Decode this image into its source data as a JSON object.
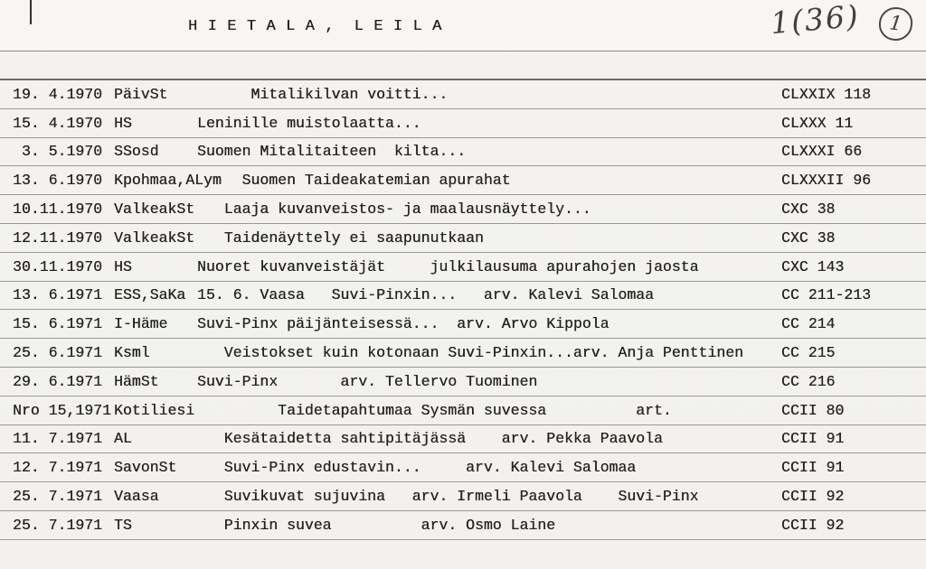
{
  "header": {
    "title": "H I E T A L A ,  L E I L A",
    "handwritten_numbering": "1(36)",
    "circled_number": "1"
  },
  "colors": {
    "paper": "#f3f2ee",
    "ink": "#26241f",
    "rule_line": "#9b9893",
    "rule_line_dark": "#6d6b66",
    "handwriting": "#41403c"
  },
  "entries": [
    {
      "date": "19. 4.1970",
      "source": "PäivSt",
      "title": "      Mitalikilvan voitti...",
      "ref": "CLXXIX 118"
    },
    {
      "date": "15. 4.1970",
      "source": "HS",
      "title": "Leninille muistolaatta...",
      "ref": "CLXXX 11"
    },
    {
      "date": " 3. 5.1970",
      "source": "SSosd",
      "title": "Suomen Mitalitaiteen  kilta...",
      "ref": "CLXXXI 66"
    },
    {
      "date": "13. 6.1970",
      "source": "Kpohmaa,ALym",
      "title": "     Suomen Taideakatemian apurahat",
      "ref": "CLXXXII 96"
    },
    {
      "date": "10.11.1970",
      "source": "ValkeakSt",
      "title": "   Laaja kuvanveistos- ja maalausnäyttely...",
      "ref": "CXC 38"
    },
    {
      "date": "12.11.1970",
      "source": "ValkeakSt",
      "title": "   Taidenäyttely ei saapunutkaan",
      "ref": "CXC 38"
    },
    {
      "date": "30.11.1970",
      "source": "HS",
      "title": "Nuoret kuvanveistäjät     julkilausuma apurahojen jaosta",
      "ref": "CXC 143"
    },
    {
      "date": "13. 6.1971",
      "source": "ESS,SaKa",
      "title": "15. 6. Vaasa   Suvi-Pinxin...   arv. Kalevi Salomaa",
      "ref": "CC 211-213"
    },
    {
      "date": "15. 6.1971",
      "source": "I-Häme",
      "title": "Suvi-Pinx päijänteisessä...  arv. Arvo Kippola",
      "ref": "CC 214"
    },
    {
      "date": "25. 6.1971",
      "source": "Ksml",
      "title": "   Veistokset kuin kotonaan Suvi-Pinxin...arv. Anja Penttinen",
      "ref": "CC 215"
    },
    {
      "date": "29. 6.1971",
      "source": "HämSt",
      "title": "Suvi-Pinx       arv. Tellervo Tuominen",
      "ref": "CC 216"
    },
    {
      "date": "Nro 15,1971",
      "source": "Kotiliesi",
      "title": "         Taidetapahtumaa Sysmän suvessa          art.",
      "ref": "CCII 80"
    },
    {
      "date": "11. 7.1971",
      "source": "AL",
      "title": "   Kesätaidetta sahtipitäjässä    arv. Pekka Paavola",
      "ref": "CCII 91"
    },
    {
      "date": "12. 7.1971",
      "source": "SavonSt",
      "title": "   Suvi-Pinx edustavin...     arv. Kalevi Salomaa",
      "ref": "CCII 91"
    },
    {
      "date": "25. 7.1971",
      "source": "Vaasa",
      "title": "   Suvikuvat sujuvina   arv. Irmeli Paavola    Suvi-Pinx",
      "ref": "CCII 92"
    },
    {
      "date": "25. 7.1971",
      "source": "TS",
      "title": "   Pinxin suvea          arv. Osmo Laine",
      "ref": "CCII 92"
    }
  ]
}
